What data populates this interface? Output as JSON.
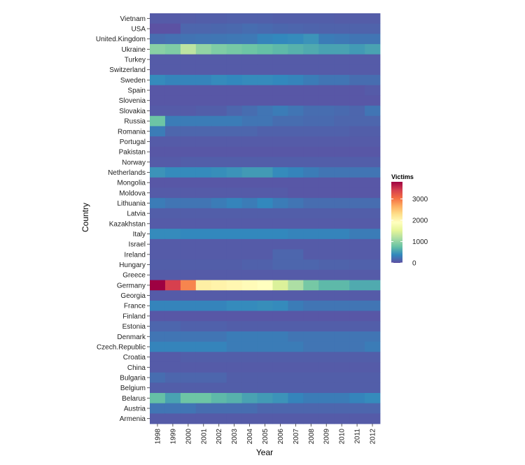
{
  "chart_data": {
    "type": "heatmap",
    "xlabel": "Year",
    "ylabel": "Country",
    "legend": {
      "title": "Victims",
      "ticks": [
        0,
        1000,
        2000,
        3000
      ],
      "min": 0,
      "max": 3800,
      "placement": "right"
    },
    "colors": [
      "#5e4fa2",
      "#3288bd",
      "#66c2a5",
      "#abdda4",
      "#e6f598",
      "#ffffbf",
      "#fee08b",
      "#fdae61",
      "#f46d43",
      "#d53e4f",
      "#9e0142"
    ],
    "x": [
      "1998",
      "1999",
      "2000",
      "2001",
      "2002",
      "2003",
      "2004",
      "2005",
      "2006",
      "2007",
      "2008",
      "2009",
      "2010",
      "2011",
      "2012"
    ],
    "rows": [
      {
        "country": "Vietnam",
        "values": [
          80,
          80,
          90,
          100,
          100,
          110,
          110,
          110,
          100,
          100,
          100,
          100,
          90,
          90,
          90
        ]
      },
      {
        "country": "USA",
        "values": [
          20,
          20,
          150,
          150,
          160,
          170,
          200,
          180,
          160,
          150,
          140,
          130,
          130,
          130,
          130
        ]
      },
      {
        "country": "United.Kingdom",
        "values": [
          200,
          220,
          240,
          250,
          260,
          270,
          280,
          350,
          380,
          400,
          450,
          300,
          280,
          250,
          250
        ]
      },
      {
        "country": "Ukraine",
        "values": [
          950,
          900,
          1250,
          1000,
          900,
          850,
          800,
          750,
          700,
          650,
          600,
          550,
          550,
          500,
          550
        ]
      },
      {
        "country": "Turkey",
        "values": [
          80,
          80,
          80,
          80,
          80,
          80,
          80,
          80,
          80,
          80,
          80,
          80,
          80,
          80,
          80
        ]
      },
      {
        "country": "Switzerland",
        "values": [
          80,
          80,
          80,
          80,
          80,
          80,
          80,
          80,
          80,
          80,
          80,
          80,
          80,
          80,
          80
        ]
      },
      {
        "country": "Sweden",
        "values": [
          400,
          350,
          350,
          350,
          400,
          380,
          400,
          400,
          380,
          350,
          300,
          250,
          250,
          200,
          200
        ]
      },
      {
        "country": "Spain",
        "values": [
          50,
          50,
          50,
          50,
          50,
          50,
          50,
          50,
          50,
          50,
          50,
          50,
          50,
          50,
          80
        ]
      },
      {
        "country": "Slovenia",
        "values": [
          50,
          50,
          50,
          50,
          50,
          50,
          50,
          50,
          50,
          50,
          50,
          50,
          50,
          50,
          50
        ]
      },
      {
        "country": "Slovakia",
        "values": [
          80,
          80,
          80,
          100,
          100,
          150,
          200,
          250,
          300,
          250,
          200,
          200,
          180,
          150,
          250
        ]
      },
      {
        "country": "Russia",
        "values": [
          800,
          300,
          300,
          300,
          300,
          300,
          250,
          250,
          200,
          200,
          180,
          180,
          150,
          150,
          150
        ]
      },
      {
        "country": "Romania",
        "values": [
          300,
          150,
          150,
          150,
          150,
          150,
          150,
          120,
          120,
          120,
          120,
          120,
          120,
          100,
          100
        ]
      },
      {
        "country": "Portugal",
        "values": [
          80,
          80,
          80,
          80,
          80,
          80,
          80,
          80,
          80,
          80,
          80,
          80,
          80,
          80,
          80
        ]
      },
      {
        "country": "Pakistan",
        "values": [
          50,
          50,
          50,
          50,
          50,
          50,
          50,
          50,
          50,
          50,
          50,
          50,
          50,
          50,
          50
        ]
      },
      {
        "country": "Norway",
        "values": [
          80,
          80,
          100,
          100,
          100,
          100,
          100,
          100,
          100,
          100,
          100,
          100,
          100,
          100,
          100
        ]
      },
      {
        "country": "Netherlands",
        "values": [
          450,
          400,
          400,
          400,
          420,
          450,
          500,
          500,
          400,
          350,
          300,
          250,
          250,
          250,
          250
        ]
      },
      {
        "country": "Mongolia",
        "values": [
          50,
          50,
          50,
          50,
          50,
          50,
          50,
          50,
          50,
          50,
          50,
          50,
          50,
          50,
          50
        ]
      },
      {
        "country": "Moldova",
        "values": [
          80,
          80,
          80,
          80,
          80,
          80,
          80,
          80,
          80,
          50,
          50,
          50,
          50,
          50,
          50
        ]
      },
      {
        "country": "Lithuania",
        "values": [
          300,
          250,
          250,
          250,
          300,
          350,
          300,
          380,
          300,
          250,
          200,
          200,
          200,
          200,
          200
        ]
      },
      {
        "country": "Latvia",
        "values": [
          100,
          100,
          100,
          100,
          100,
          100,
          100,
          100,
          100,
          100,
          100,
          100,
          100,
          100,
          100
        ]
      },
      {
        "country": "Kazakhstan",
        "values": [
          80,
          80,
          80,
          80,
          80,
          80,
          80,
          80,
          80,
          80,
          80,
          80,
          80,
          80,
          80
        ]
      },
      {
        "country": "Italy",
        "values": [
          400,
          400,
          380,
          380,
          380,
          380,
          380,
          380,
          380,
          350,
          350,
          350,
          350,
          300,
          300
        ]
      },
      {
        "country": "Israel",
        "values": [
          80,
          80,
          80,
          80,
          80,
          80,
          80,
          80,
          80,
          80,
          80,
          80,
          80,
          80,
          80
        ]
      },
      {
        "country": "Ireland",
        "values": [
          80,
          80,
          80,
          80,
          80,
          80,
          80,
          80,
          150,
          150,
          80,
          80,
          80,
          80,
          80
        ]
      },
      {
        "country": "Hungary",
        "values": [
          100,
          100,
          100,
          100,
          100,
          100,
          120,
          120,
          150,
          150,
          150,
          130,
          130,
          120,
          120
        ]
      },
      {
        "country": "Greece",
        "values": [
          80,
          80,
          80,
          80,
          80,
          80,
          80,
          80,
          80,
          80,
          80,
          80,
          80,
          80,
          80
        ]
      },
      {
        "country": "Germany",
        "values": [
          3800,
          3400,
          2900,
          2100,
          2050,
          2000,
          1950,
          1900,
          1450,
          1150,
          850,
          700,
          700,
          600,
          600
        ]
      },
      {
        "country": "Georgia",
        "values": [
          80,
          80,
          80,
          80,
          80,
          80,
          80,
          80,
          80,
          80,
          80,
          80,
          80,
          80,
          80
        ]
      },
      {
        "country": "France",
        "values": [
          350,
          350,
          350,
          350,
          350,
          400,
          400,
          420,
          400,
          300,
          250,
          250,
          250,
          250,
          250
        ]
      },
      {
        "country": "Finland",
        "values": [
          50,
          50,
          50,
          50,
          50,
          50,
          50,
          50,
          50,
          50,
          50,
          50,
          50,
          50,
          50
        ]
      },
      {
        "country": "Estonia",
        "values": [
          150,
          150,
          120,
          120,
          120,
          100,
          100,
          100,
          100,
          100,
          100,
          100,
          100,
          100,
          100
        ]
      },
      {
        "country": "Denmark",
        "values": [
          250,
          250,
          250,
          250,
          250,
          300,
          300,
          300,
          300,
          250,
          250,
          250,
          250,
          250,
          250
        ]
      },
      {
        "country": "Czech.Republic",
        "values": [
          350,
          350,
          350,
          350,
          350,
          300,
          300,
          300,
          300,
          300,
          250,
          250,
          250,
          250,
          300
        ]
      },
      {
        "country": "Croatia",
        "values": [
          80,
          80,
          100,
          100,
          100,
          100,
          100,
          100,
          100,
          100,
          100,
          100,
          100,
          100,
          100
        ]
      },
      {
        "country": "China",
        "values": [
          80,
          80,
          80,
          80,
          80,
          80,
          80,
          80,
          80,
          80,
          80,
          80,
          80,
          80,
          80
        ]
      },
      {
        "country": "Bulgaria",
        "values": [
          200,
          150,
          150,
          150,
          150,
          100,
          100,
          100,
          100,
          100,
          100,
          100,
          100,
          100,
          100
        ]
      },
      {
        "country": "Belgium",
        "values": [
          100,
          100,
          100,
          100,
          100,
          100,
          100,
          100,
          100,
          100,
          100,
          100,
          100,
          100,
          100
        ]
      },
      {
        "country": "Belarus",
        "values": [
          750,
          550,
          800,
          800,
          700,
          650,
          550,
          500,
          450,
          350,
          300,
          300,
          300,
          350,
          400
        ]
      },
      {
        "country": "Austria",
        "values": [
          250,
          250,
          250,
          200,
          200,
          200,
          200,
          150,
          150,
          150,
          150,
          150,
          150,
          150,
          150
        ]
      },
      {
        "country": "Armenia",
        "values": [
          80,
          80,
          80,
          80,
          80,
          80,
          80,
          80,
          80,
          80,
          80,
          80,
          80,
          80,
          80
        ]
      }
    ]
  }
}
